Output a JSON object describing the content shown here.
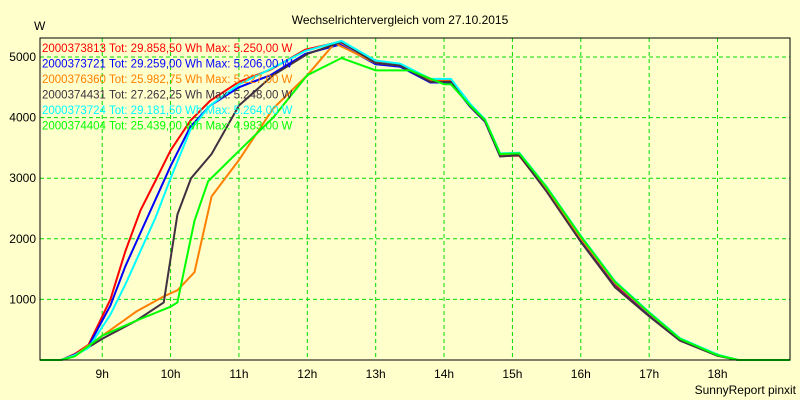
{
  "chart_data": {
    "type": "line",
    "title": "Wechselrichtervergleich vom 27.10.2015",
    "ylabel": "W",
    "xlabel": "",
    "footer": "SunnyReport pinxit",
    "xlim": [
      8.09,
      19.06
    ],
    "ylim": [
      0,
      5300
    ],
    "yticks": [
      1000,
      2000,
      3000,
      4000,
      5000
    ],
    "ytick_labels": [
      "1000",
      "2000",
      "3000",
      "4000",
      "5000"
    ],
    "xticks": [
      9,
      10,
      11,
      12,
      13,
      14,
      15,
      16,
      17,
      18
    ],
    "xtick_labels": [
      "9h",
      "10h",
      "11h",
      "12h",
      "13h",
      "14h",
      "15h",
      "16h",
      "17h",
      "18h"
    ],
    "grid": true,
    "legend_position": "top-left",
    "series": [
      {
        "name": "2000373813",
        "label": "2000373813 Tot: 29.858,50 Wh Max: 5.250,00 W",
        "color": "#ff0000",
        "x": [
          8.09,
          8.4,
          8.6,
          8.8,
          9.12,
          9.34,
          9.56,
          9.78,
          10,
          10.29,
          10.58,
          11,
          11.46,
          11.97,
          12.48,
          13,
          13.36,
          13.8,
          14.1,
          14.38,
          14.6,
          14.82,
          15.1,
          15.5,
          16,
          16.5,
          17,
          17.45,
          18,
          18.3,
          19.06
        ],
        "y": [
          0,
          0,
          100,
          250,
          1000,
          1800,
          2470,
          2960,
          3460,
          3950,
          4280,
          4590,
          4790,
          5120,
          5250,
          4920,
          4870,
          4610,
          4610,
          4200,
          3950,
          3370,
          3370,
          2800,
          1980,
          1240,
          740,
          330,
          80,
          0,
          0
        ]
      },
      {
        "name": "2000373721",
        "label": "2000373721 Tot: 29.259,00 Wh Max: 5.206,00 W",
        "color": "#0000ff",
        "x": [
          8.09,
          8.4,
          8.6,
          8.8,
          9.12,
          9.34,
          9.56,
          9.78,
          10,
          10.29,
          10.58,
          11,
          11.46,
          11.97,
          12.48,
          13,
          13.36,
          13.8,
          14.1,
          14.38,
          14.6,
          14.82,
          15.1,
          15.5,
          16,
          16.5,
          17,
          17.45,
          18,
          18.3,
          19.06
        ],
        "y": [
          0,
          0,
          90,
          230,
          900,
          1550,
          2100,
          2650,
          3200,
          3850,
          4200,
          4500,
          4700,
          5050,
          5206,
          4880,
          4840,
          4580,
          4580,
          4180,
          3930,
          3360,
          3380,
          2820,
          2000,
          1260,
          760,
          340,
          80,
          0,
          0
        ]
      },
      {
        "name": "2000376360",
        "label": "2000376360 Tot: 25.982,75 Wh Max: 5.227,00 W",
        "color": "#ff8000",
        "x": [
          8.09,
          8.4,
          8.6,
          9,
          9.5,
          9.9,
          10.1,
          10.35,
          10.6,
          11,
          11.5,
          12,
          12.4,
          13,
          13.36,
          13.8,
          14.1,
          14.38,
          14.6,
          14.82,
          15.1,
          15.5,
          16,
          16.5,
          17,
          17.45,
          18,
          18.3,
          19.06
        ],
        "y": [
          0,
          0,
          80,
          400,
          800,
          1050,
          1150,
          1450,
          2700,
          3300,
          4150,
          4700,
          5227,
          4900,
          4860,
          4600,
          4600,
          4190,
          3940,
          3370,
          3380,
          2820,
          2010,
          1270,
          770,
          350,
          80,
          0,
          0
        ]
      },
      {
        "name": "2000374431",
        "label": "2000374431 Tot: 27.262,25 Wh Max: 5.248,00 W",
        "color": "#403040",
        "x": [
          8.09,
          8.4,
          8.6,
          9,
          9.5,
          9.9,
          10.1,
          10.3,
          10.6,
          11,
          11.5,
          12,
          12.5,
          13,
          13.36,
          13.8,
          14.1,
          14.38,
          14.6,
          14.82,
          15.1,
          15.5,
          16,
          16.5,
          17,
          17.45,
          18,
          18.3,
          19.06
        ],
        "y": [
          0,
          0,
          70,
          350,
          650,
          950,
          2400,
          3000,
          3400,
          4200,
          4700,
          5050,
          5248,
          4900,
          4860,
          4590,
          4590,
          4190,
          3940,
          3360,
          3380,
          2780,
          1950,
          1200,
          720,
          320,
          70,
          0,
          0
        ]
      },
      {
        "name": "2000373724",
        "label": "2000373724 Tot: 29.181,50 Wh Max: 5.264,00 W",
        "color": "#00ffff",
        "x": [
          8.09,
          8.4,
          8.6,
          8.8,
          9.12,
          9.34,
          9.56,
          9.78,
          10,
          10.29,
          10.58,
          11,
          11.46,
          11.97,
          12.5,
          13,
          13.36,
          13.8,
          14.1,
          14.38,
          14.6,
          14.82,
          15.1,
          15.5,
          16,
          16.5,
          17,
          17.45,
          18,
          18.3,
          19.06
        ],
        "y": [
          0,
          0,
          80,
          200,
          750,
          1250,
          1800,
          2350,
          3000,
          3800,
          4200,
          4550,
          4800,
          5100,
          5264,
          4940,
          4890,
          4640,
          4640,
          4230,
          3970,
          3410,
          3420,
          2860,
          2050,
          1300,
          790,
          360,
          90,
          0,
          0
        ]
      },
      {
        "name": "2000374404",
        "label": "2000374404 Tot: 25.439,00 Wh Max: 4.983,00 W",
        "color": "#00ff00",
        "x": [
          8.09,
          8.4,
          8.6,
          9,
          9.5,
          10,
          10.1,
          10.35,
          10.55,
          11,
          11.5,
          12,
          12.5,
          13,
          13.5,
          14,
          14.1,
          14.38,
          14.6,
          14.82,
          15.1,
          15.5,
          16,
          16.5,
          17,
          17.45,
          18,
          18.3,
          19.06
        ],
        "y": [
          0,
          0,
          60,
          400,
          650,
          880,
          950,
          2300,
          2950,
          3450,
          4000,
          4700,
          4983,
          4780,
          4780,
          4550,
          4550,
          4200,
          3960,
          3400,
          3410,
          2850,
          2040,
          1290,
          780,
          350,
          80,
          0,
          0
        ]
      }
    ]
  }
}
